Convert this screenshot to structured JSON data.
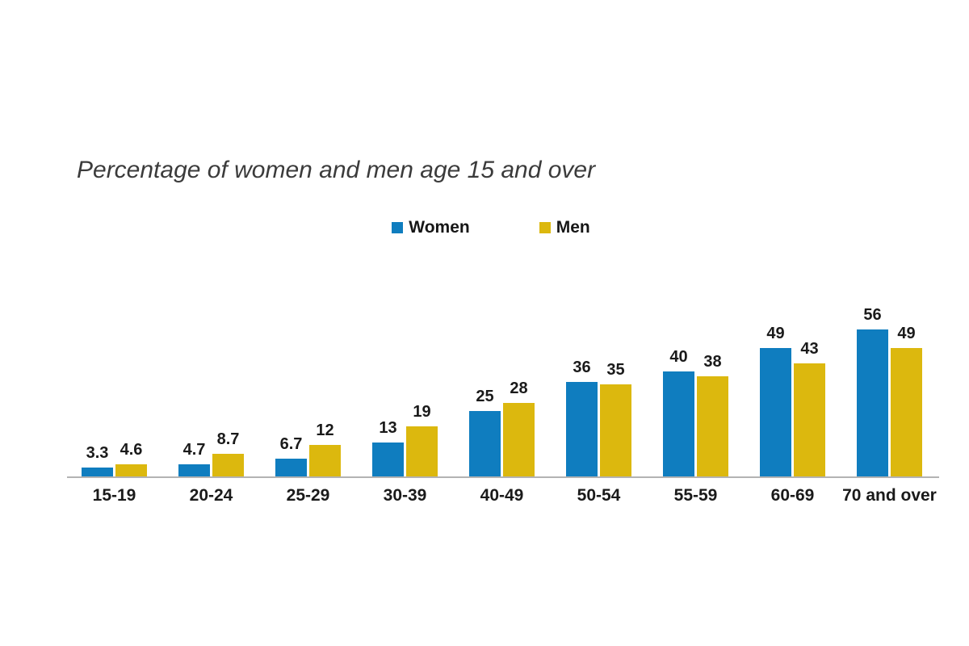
{
  "title": "Percentage of women and men age 15 and over",
  "legend": {
    "items": [
      {
        "label": "Women",
        "color": "#0f7dbf"
      },
      {
        "label": "Men",
        "color": "#dcb80e"
      }
    ]
  },
  "chart_data": {
    "type": "bar",
    "title": "Percentage of women and men age 15 and over",
    "categories": [
      "15-19",
      "20-24",
      "25-29",
      "30-39",
      "40-49",
      "50-54",
      "55-59",
      "60-69",
      "70 and over"
    ],
    "series": [
      {
        "name": "Women",
        "color": "#0f7dbf",
        "values": [
          3.3,
          4.7,
          6.7,
          13,
          25,
          36,
          40,
          49,
          56
        ]
      },
      {
        "name": "Men",
        "color": "#dcb80e",
        "values": [
          4.6,
          8.7,
          12,
          19,
          28,
          35,
          38,
          43,
          49
        ]
      }
    ],
    "xlabel": "",
    "ylabel": "",
    "ylim": [
      0,
      60
    ],
    "grid": false,
    "legend_position": "top-center",
    "data_labels": true,
    "axis_line_color": "#b3b3b3"
  }
}
